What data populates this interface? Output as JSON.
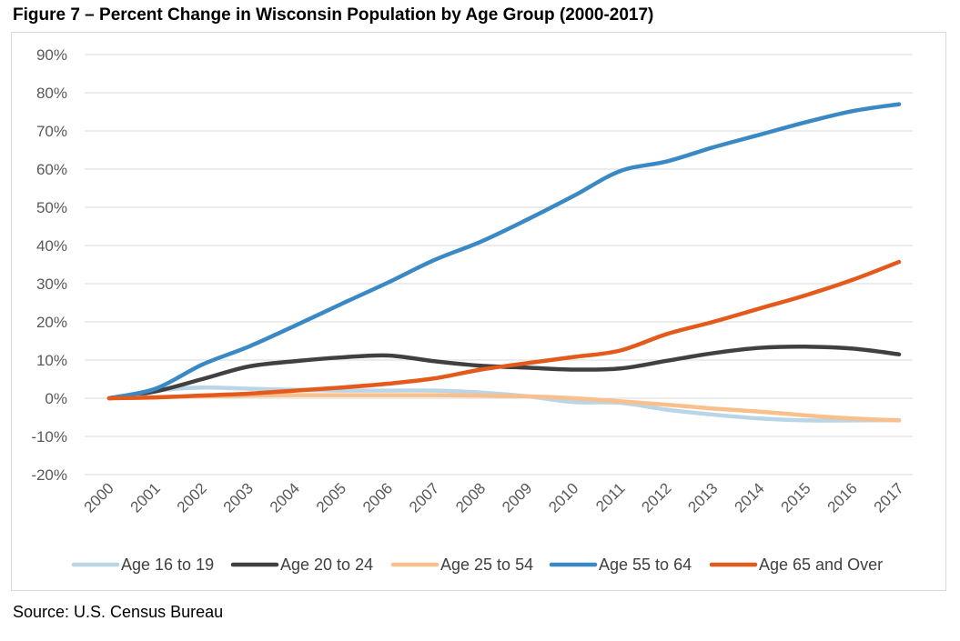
{
  "figure": {
    "title": "Figure 7 – Percent Change in Wisconsin Population by Age Group (2000-2017)",
    "source": "Source: U.S. Census Bureau"
  },
  "chart_data": {
    "type": "line",
    "title": "Figure 7 – Percent Change in Wisconsin Population by Age Group (2000-2017)",
    "xlabel": "",
    "ylabel": "",
    "ylim": [
      -20,
      90
    ],
    "yticks": [
      90,
      80,
      70,
      60,
      50,
      40,
      30,
      20,
      10,
      0,
      -10,
      -20
    ],
    "ytick_labels": [
      "90%",
      "80%",
      "70%",
      "60%",
      "50%",
      "40%",
      "30%",
      "20%",
      "10%",
      "0%",
      "-10%",
      "-20%"
    ],
    "grid": true,
    "legend_position": "bottom",
    "x": [
      "2000",
      "2001",
      "2002",
      "2003",
      "2004",
      "2005",
      "2006",
      "2007",
      "2008",
      "2009",
      "2010",
      "2011",
      "2012",
      "2013",
      "2014",
      "2015",
      "2016",
      "2017"
    ],
    "series": [
      {
        "name": "Age 16 to 19",
        "color": "#b9d5e6",
        "values": [
          0,
          2.0,
          2.8,
          2.5,
          2.2,
          2.0,
          2.0,
          2.0,
          1.5,
          0.5,
          -1.0,
          -1.2,
          -3.0,
          -4.3,
          -5.3,
          -5.8,
          -5.8,
          -5.7
        ]
      },
      {
        "name": "Age 20 to 24",
        "color": "#404040",
        "values": [
          0,
          1.8,
          5.0,
          8.3,
          9.7,
          10.7,
          11.2,
          9.7,
          8.5,
          8.0,
          7.5,
          7.8,
          9.8,
          11.8,
          13.2,
          13.5,
          13.0,
          11.5
        ]
      },
      {
        "name": "Age 25 to 54",
        "color": "#f9bf8c",
        "values": [
          0,
          0.3,
          0.5,
          0.7,
          0.8,
          0.8,
          0.8,
          0.8,
          0.7,
          0.5,
          0.0,
          -0.8,
          -1.7,
          -2.7,
          -3.5,
          -4.5,
          -5.3,
          -5.8
        ]
      },
      {
        "name": "Age 55 to 64",
        "color": "#3a89c4",
        "values": [
          0,
          2.5,
          8.8,
          13.5,
          19.0,
          24.7,
          30.3,
          36.2,
          41.0,
          46.8,
          53.0,
          59.5,
          62.0,
          65.7,
          69.0,
          72.3,
          75.2,
          77.0
        ]
      },
      {
        "name": "Age 65 and Over",
        "color": "#e45a1c",
        "values": [
          0,
          0.2,
          0.7,
          1.2,
          2.0,
          2.8,
          3.8,
          5.2,
          7.5,
          9.2,
          10.8,
          12.5,
          16.8,
          20.0,
          23.5,
          27.0,
          31.0,
          35.7
        ]
      }
    ]
  }
}
